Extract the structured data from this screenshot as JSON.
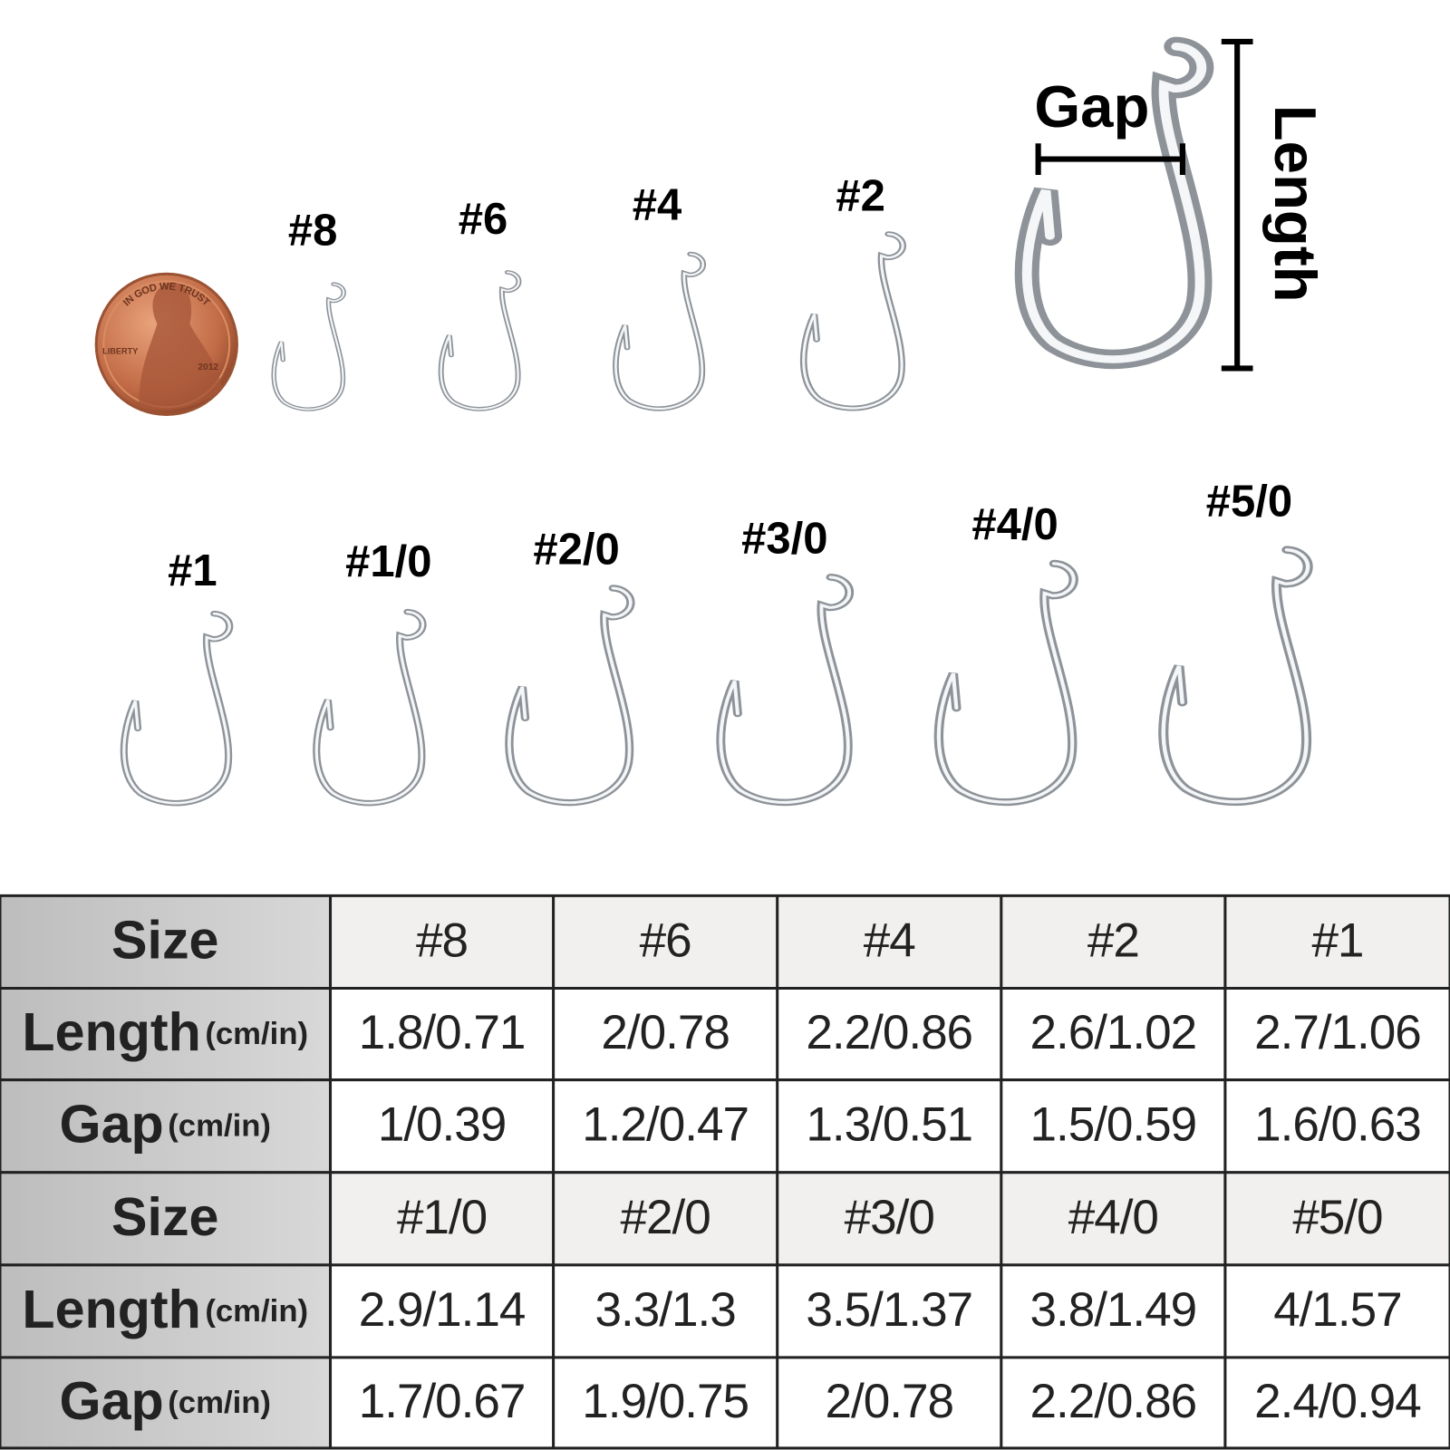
{
  "hooks": [
    {
      "label": "#8"
    },
    {
      "label": "#6"
    },
    {
      "label": "#4"
    },
    {
      "label": "#2"
    },
    {
      "label": "#1"
    },
    {
      "label": "#1/0"
    },
    {
      "label": "#2/0"
    },
    {
      "label": "#3/0"
    },
    {
      "label": "#4/0"
    },
    {
      "label": "#5/0"
    }
  ],
  "diagram": {
    "gap": "Gap",
    "length": "Length"
  },
  "penny": {
    "motto": "IN GOD WE TRUST",
    "liberty": "LIBERTY",
    "year": "2012"
  },
  "table": {
    "rows": [
      {
        "label": "Size",
        "cells": [
          "#8",
          "#6",
          "#4",
          "#2",
          "#1"
        ]
      },
      {
        "label": "Length",
        "unit": "(cm/in)",
        "cells": [
          "1.8/0.71",
          "2/0.78",
          "2.2/0.86",
          "2.6/1.02",
          "2.7/1.06"
        ]
      },
      {
        "label": "Gap",
        "unit": "(cm/in)",
        "cells": [
          "1/0.39",
          "1.2/0.47",
          "1.3/0.51",
          "1.5/0.59",
          "1.6/0.63"
        ]
      },
      {
        "label": "Size",
        "cells": [
          "#1/0",
          "#2/0",
          "#3/0",
          "#4/0",
          "#5/0"
        ]
      },
      {
        "label": "Length",
        "unit": "(cm/in)",
        "cells": [
          "2.9/1.14",
          "3.3/1.3",
          "3.5/1.37",
          "3.8/1.49",
          "4/1.57"
        ]
      },
      {
        "label": "Gap",
        "unit": "(cm/in)",
        "cells": [
          "1.7/0.67",
          "1.9/0.75",
          "2/0.78",
          "2.2/0.86",
          "2.4/0.94"
        ]
      }
    ]
  }
}
